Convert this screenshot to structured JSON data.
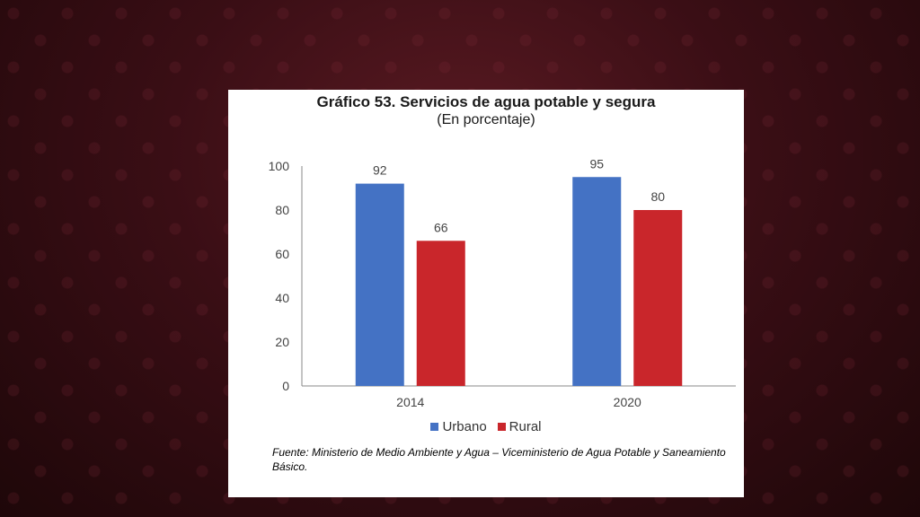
{
  "chart_data": {
    "type": "bar",
    "title": "Gráfico 53. Servicios de agua potable y segura",
    "subtitle": "(En porcentaje)",
    "categories": [
      "2014",
      "2020"
    ],
    "series": [
      {
        "name": "Urbano",
        "values": [
          92,
          95
        ],
        "color": "#4472c4"
      },
      {
        "name": "Rural",
        "values": [
          66,
          80
        ],
        "color": "#c9262b"
      }
    ],
    "ylim": [
      0,
      100
    ],
    "yticks": [
      "0",
      "20",
      "40",
      "60",
      "80",
      "100"
    ],
    "grid": false,
    "legend": "bottom",
    "source_note": "Fuente: Ministerio de Medio Ambiente y Agua – Viceministerio de Agua Potable y Saneamiento Básico."
  }
}
